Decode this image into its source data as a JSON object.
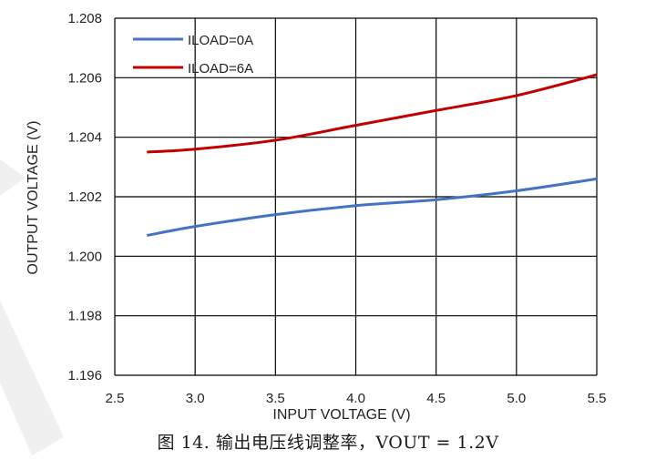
{
  "chart_data": {
    "type": "line",
    "title": "",
    "xlabel": "INPUT VOLTAGE (V)",
    "ylabel": "OUTPUT VOLTAGE (V)",
    "xlim": [
      2.5,
      5.5
    ],
    "ylim": [
      1.196,
      1.208
    ],
    "x_ticks": [
      "2.5",
      "3.0",
      "3.5",
      "4.0",
      "4.5",
      "5.0",
      "5.5"
    ],
    "y_ticks": [
      "1.196",
      "1.198",
      "1.200",
      "1.202",
      "1.204",
      "1.206",
      "1.208"
    ],
    "grid": true,
    "legend_position": "top-left",
    "series": [
      {
        "name": "ILOAD=0A",
        "color": "#4472c4",
        "x": [
          2.7,
          3.0,
          3.5,
          4.0,
          4.5,
          5.0,
          5.5
        ],
        "y": [
          1.2007,
          1.201,
          1.2014,
          1.2017,
          1.2019,
          1.2022,
          1.2026
        ]
      },
      {
        "name": "ILOAD=6A",
        "color": "#c00000",
        "x": [
          2.7,
          3.0,
          3.5,
          4.0,
          4.5,
          5.0,
          5.5
        ],
        "y": [
          1.2035,
          1.2036,
          1.2039,
          1.2044,
          1.2049,
          1.2054,
          1.2061
        ]
      }
    ]
  },
  "caption": "图 14. 输出电压线调整率，VOUT = 1.2V"
}
